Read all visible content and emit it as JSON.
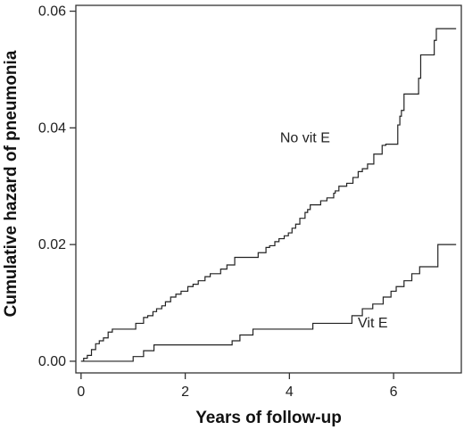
{
  "chart_data": {
    "type": "line",
    "title": "",
    "xlabel": "Years of follow-up",
    "ylabel": "Cumulative hazard of pneumonia",
    "xlim": [
      -0.1,
      7.3
    ],
    "ylim": [
      -0.002,
      0.061
    ],
    "x_ticks": [
      0,
      2,
      4,
      6
    ],
    "x_tick_labels": [
      "0",
      "2",
      "4",
      "6"
    ],
    "y_ticks": [
      0.0,
      0.02,
      0.04,
      0.06
    ],
    "y_tick_labels": [
      "0.00",
      "0.02",
      "0.04",
      "0.06"
    ],
    "grid": false,
    "legend": "none",
    "step": true,
    "series": [
      {
        "name": "No vit E",
        "color": "#222222",
        "x": [
          0,
          0.05,
          0.12,
          0.2,
          0.28,
          0.35,
          0.43,
          0.52,
          0.6,
          0.72,
          1.05,
          1.2,
          1.28,
          1.38,
          1.45,
          1.55,
          1.62,
          1.72,
          1.82,
          1.92,
          2.05,
          2.15,
          2.25,
          2.38,
          2.48,
          2.68,
          2.8,
          2.95,
          3.05,
          3.4,
          3.55,
          3.62,
          3.72,
          3.8,
          3.9,
          3.98,
          4.05,
          4.12,
          4.2,
          4.3,
          4.35,
          4.4,
          4.42,
          4.6,
          4.72,
          4.85,
          4.88,
          4.95,
          5.1,
          5.22,
          5.32,
          5.4,
          5.5,
          5.62,
          5.78,
          5.85,
          6.08,
          6.12,
          6.15,
          6.2,
          6.4,
          6.48,
          6.52,
          6.72,
          6.78,
          6.82,
          7.2
        ],
        "y": [
          0.0,
          0.0005,
          0.001,
          0.002,
          0.003,
          0.0035,
          0.004,
          0.005,
          0.0055,
          0.0055,
          0.0065,
          0.0075,
          0.0078,
          0.0085,
          0.009,
          0.0095,
          0.0102,
          0.011,
          0.0115,
          0.012,
          0.0128,
          0.0132,
          0.0138,
          0.0145,
          0.015,
          0.0158,
          0.0165,
          0.0178,
          0.0178,
          0.0186,
          0.0195,
          0.0198,
          0.0205,
          0.021,
          0.0215,
          0.022,
          0.0228,
          0.0235,
          0.0245,
          0.0255,
          0.026,
          0.0268,
          0.0268,
          0.0275,
          0.028,
          0.0288,
          0.0292,
          0.03,
          0.0305,
          0.0315,
          0.0325,
          0.033,
          0.0338,
          0.0355,
          0.037,
          0.0372,
          0.0405,
          0.042,
          0.043,
          0.0458,
          0.0458,
          0.0485,
          0.0525,
          0.0525,
          0.055,
          0.057,
          0.057
        ]
      },
      {
        "name": "Vit E",
        "color": "#222222",
        "x": [
          0,
          1.0,
          1.2,
          1.4,
          2.9,
          3.05,
          3.3,
          4.45,
          5.2,
          5.4,
          5.6,
          5.8,
          5.95,
          6.05,
          6.2,
          6.35,
          6.5,
          6.85,
          7.2
        ],
        "y": [
          0.0,
          0.0008,
          0.0018,
          0.0028,
          0.0035,
          0.0045,
          0.0055,
          0.0065,
          0.0078,
          0.009,
          0.0098,
          0.011,
          0.012,
          0.0128,
          0.0138,
          0.015,
          0.0162,
          0.02,
          0.02
        ]
      }
    ],
    "annotations": [
      {
        "text": "No vit E",
        "x": 4.3,
        "y": 0.0375
      },
      {
        "text": "Vit E",
        "x": 5.6,
        "y": 0.0058
      }
    ]
  }
}
